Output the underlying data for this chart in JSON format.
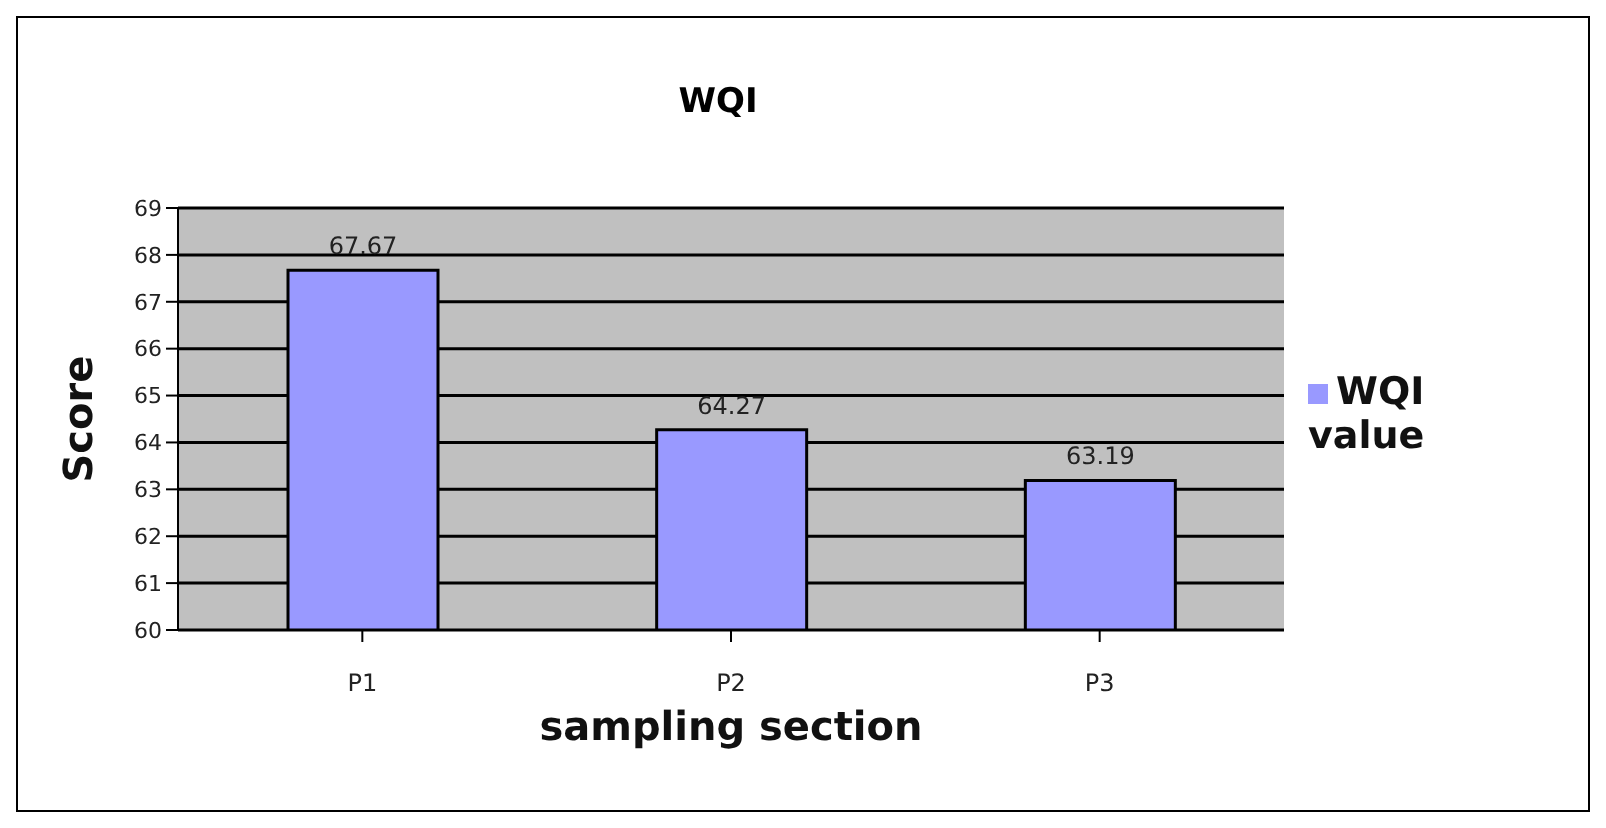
{
  "chart_data": {
    "type": "bar",
    "title": "WQI",
    "xlabel": "sampling section",
    "ylabel": "Score",
    "categories": [
      "P1",
      "P2",
      "P3"
    ],
    "series": [
      {
        "name": "WQI value",
        "color": "#9999ff",
        "values": [
          67.67,
          64.27,
          63.19
        ]
      }
    ],
    "ylim": [
      60,
      69
    ],
    "yticks": [
      60,
      61,
      62,
      63,
      64,
      65,
      66,
      67,
      68,
      69
    ],
    "grid": "y",
    "legend": "right",
    "data_labels": true
  }
}
